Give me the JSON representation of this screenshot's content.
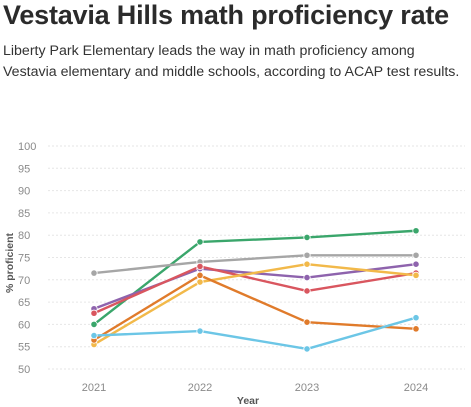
{
  "header": {
    "title": "Vestavia Hills math proficiency rate",
    "subtitle": "Liberty Park Elementary leads the way in math proficiency among Vestavia elementary and middle schools, according to ACAP test results."
  },
  "chart_data": {
    "type": "line",
    "title": "Vestavia Hills math proficiency rate",
    "xlabel": "Year",
    "ylabel": "% proficient",
    "ylim": [
      50,
      100
    ],
    "yticks": [
      50,
      55,
      60,
      65,
      70,
      75,
      80,
      85,
      90,
      95,
      100
    ],
    "x": [
      "2021",
      "2022",
      "2023",
      "2024"
    ],
    "grid": true,
    "legend": "none",
    "series": [
      {
        "color": "#3aa66b",
        "values": [
          60,
          78.5,
          79.5,
          81
        ]
      },
      {
        "color": "#a6a6a6",
        "values": [
          71.5,
          74,
          75.5,
          75.5
        ]
      },
      {
        "color": "#8e63ad",
        "values": [
          63.5,
          72.5,
          70.5,
          73.5
        ]
      },
      {
        "color": "#d9565f",
        "values": [
          62.5,
          73,
          67.5,
          71.5
        ]
      },
      {
        "color": "#f2b94a",
        "values": [
          55.5,
          69.5,
          73.5,
          71
        ]
      },
      {
        "color": "#e07b2b",
        "values": [
          56.5,
          71,
          60.5,
          59
        ]
      },
      {
        "color": "#6cc6e6",
        "values": [
          57.5,
          58.5,
          54.5,
          61.5
        ]
      }
    ]
  }
}
